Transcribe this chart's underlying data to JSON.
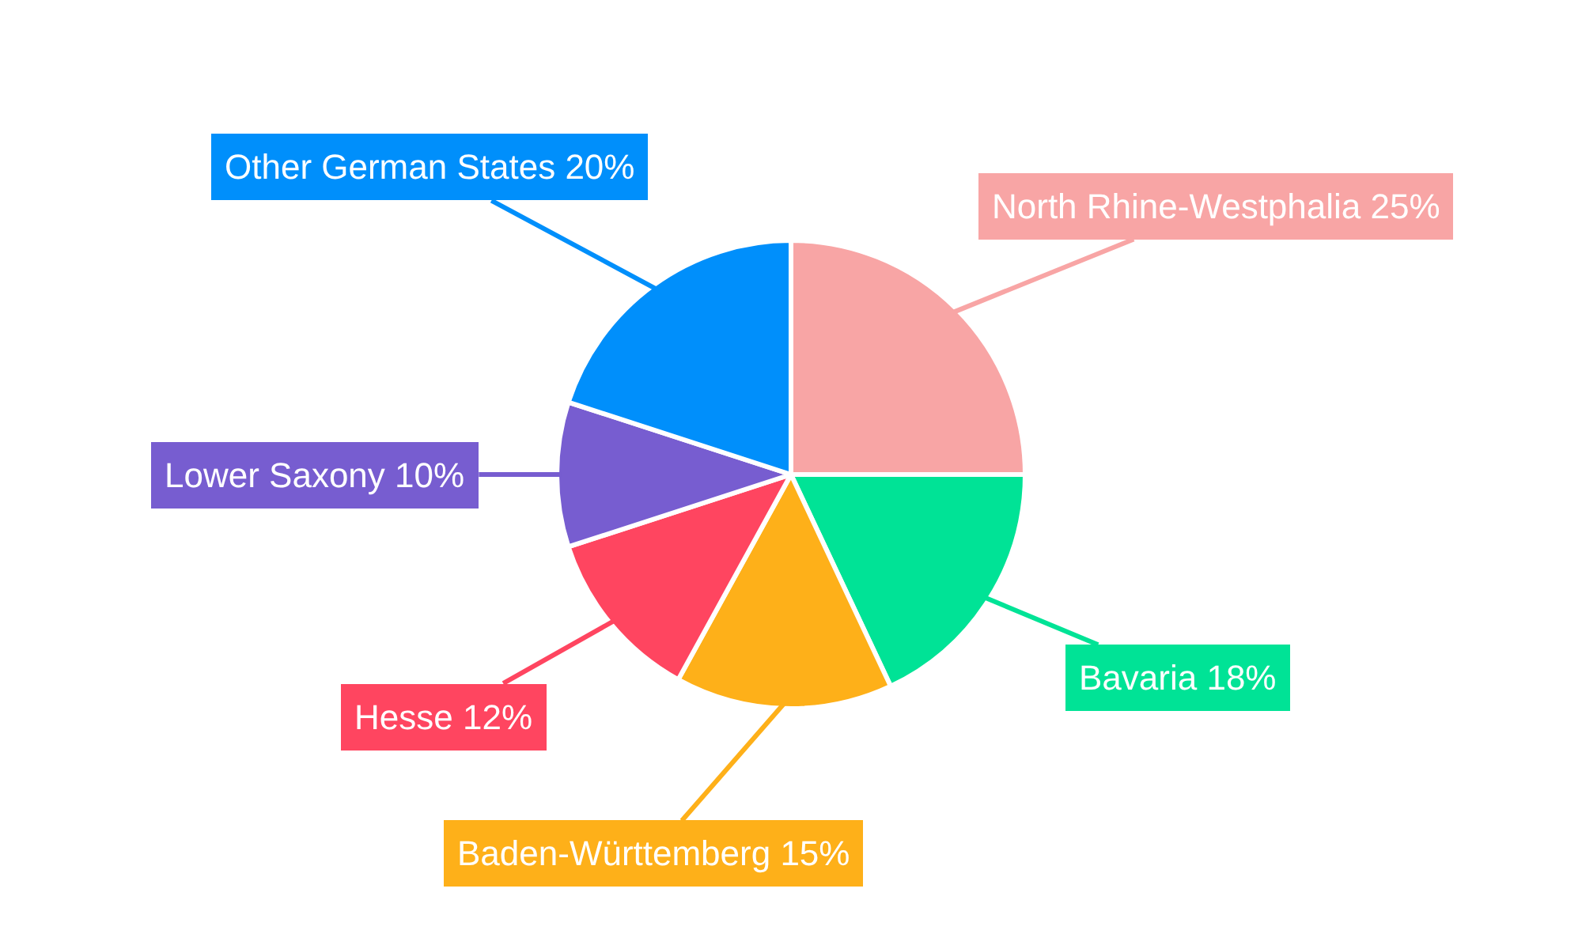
{
  "chart_data": {
    "type": "pie",
    "categories": [
      "North Rhine-Westphalia",
      "Bavaria",
      "Baden-Württemberg",
      "Hesse",
      "Lower Saxony",
      "Other German States"
    ],
    "values": [
      25,
      18,
      15,
      12,
      10,
      20
    ],
    "value_labels": [
      "25%",
      "18%",
      "15%",
      "12%",
      "10%",
      "20%"
    ],
    "colors": [
      "#f8a5a5",
      "#00e396",
      "#feb019",
      "#ff4560",
      "#775dd0",
      "#008ffb"
    ]
  }
}
